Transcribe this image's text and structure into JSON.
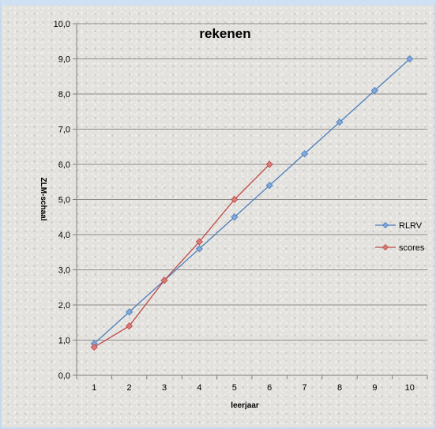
{
  "chart_data": {
    "type": "line",
    "title": "rekenen",
    "xlabel": "leerjaar",
    "ylabel": "ZLM-schaal",
    "categories": [
      "1",
      "2",
      "3",
      "4",
      "5",
      "6",
      "7",
      "8",
      "9",
      "10"
    ],
    "ylim": [
      0,
      10
    ],
    "yticks": [
      "0,0",
      "1,0",
      "2,0",
      "3,0",
      "4,0",
      "5,0",
      "6,0",
      "7,0",
      "8,0",
      "9,0",
      "10,0"
    ],
    "grid": "horizontal",
    "legend_position": "right",
    "series": [
      {
        "name": "RLRV",
        "color": "#4a7ebb",
        "marker_color": "#7fa8dc",
        "values": [
          0.9,
          1.8,
          2.7,
          3.6,
          4.5,
          5.4,
          6.3,
          7.2,
          8.1,
          9.0
        ]
      },
      {
        "name": "scores",
        "color": "#be4b48",
        "marker_color": "#d87a77",
        "values": [
          0.8,
          1.4,
          2.7,
          3.8,
          5.0,
          6.0,
          null,
          null,
          null,
          null
        ]
      }
    ]
  }
}
